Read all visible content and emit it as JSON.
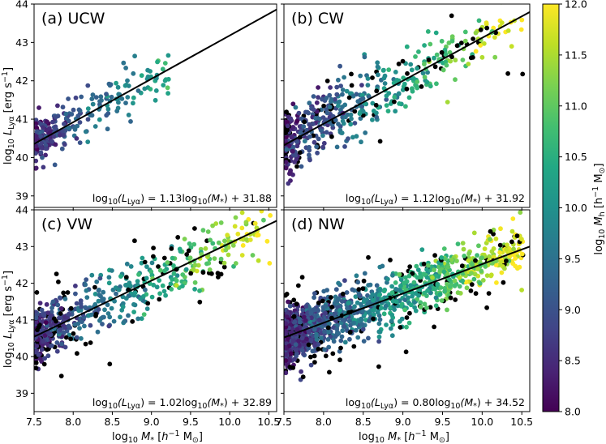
{
  "figure": {
    "xlabel_main": "log",
    "xlabel_sub": "10",
    "xlabel_var": "M",
    "xlabel_star": "*",
    "xlabel_unit_open": "[",
    "xlabel_unit_h": "h",
    "xlabel_unit_exp": "−1",
    "xlabel_unit_msun": "M",
    "xlabel_unit_odot": "⊙",
    "xlabel_unit_close": "]",
    "ylabel_main": "log",
    "ylabel_sub": "10",
    "ylabel_var": "L",
    "ylabel_varsub": "Lyα",
    "ylabel_unit": "[erg s",
    "ylabel_unit_exp": "−1",
    "ylabel_unit_close": "]",
    "colorbar_label_main": "log",
    "colorbar_label_sub": "10",
    "colorbar_label_var": "M",
    "colorbar_label_varsub": "h",
    "colorbar_label_unit": "[h",
    "colorbar_label_unit_exp": "−1",
    "colorbar_label_unit_msun": "M",
    "colorbar_label_unit_odot": "⊙",
    "colorbar_label_close": "]",
    "colorbar_ticks": [
      "8.0",
      "8.5",
      "9.0",
      "9.5",
      "10.0",
      "10.5",
      "11.0",
      "11.5",
      "12.0"
    ],
    "colorbar_range": [
      8.0,
      12.0
    ],
    "colorscale": "viridis",
    "no_halo_color": "#000000",
    "fit_line_color": "#000000"
  },
  "chart_data": [
    {
      "type": "scatter",
      "panel_label": "(a) UCW",
      "equation_text": "log10(LLyα) = 1.13log10(M*) + 31.88",
      "eq_lhs": "log",
      "eq_lhs_sub": "10",
      "eq_L": "(L",
      "eq_L_sub": "Lyα",
      "eq_mid": ") = 1.13log",
      "eq_mid_sub": "10",
      "eq_M": "(M",
      "eq_M_sub": "*",
      "eq_rhs": ") + 31.88",
      "slope": 1.13,
      "intercept": 31.88,
      "xlim": [
        7.5,
        10.6
      ],
      "ylim": [
        38.7,
        44.0
      ],
      "xticks": [
        "7.5",
        "8.0",
        "8.5",
        "9.0",
        "9.5",
        "10.0",
        "10.5"
      ],
      "yticks": [
        "39",
        "40",
        "41",
        "42",
        "43",
        "44"
      ],
      "seed": 11,
      "n_points": 260,
      "black_fraction": 0.0,
      "x_max_cloud": 9.2,
      "scatter_sigma": 0.3
    },
    {
      "type": "scatter",
      "panel_label": "(b) CW",
      "eq_lhs": "log",
      "eq_lhs_sub": "10",
      "eq_L": "(L",
      "eq_L_sub": "Lyα",
      "eq_mid": ") = 1.12log",
      "eq_mid_sub": "10",
      "eq_M": "(M",
      "eq_M_sub": "*",
      "eq_rhs": ") + 31.92",
      "slope": 1.12,
      "intercept": 31.92,
      "xlim": [
        7.5,
        10.6
      ],
      "ylim": [
        38.7,
        44.0
      ],
      "xticks": [
        "7.5",
        "8.0",
        "8.5",
        "9.0",
        "9.5",
        "10.0",
        "10.5"
      ],
      "yticks": [
        "39",
        "40",
        "41",
        "42",
        "43",
        "44"
      ],
      "seed": 23,
      "n_points": 520,
      "black_fraction": 0.12,
      "x_max_cloud": 10.5,
      "scatter_sigma": 0.4
    },
    {
      "type": "scatter",
      "panel_label": "(c) VW",
      "eq_lhs": "log",
      "eq_lhs_sub": "10",
      "eq_L": "(L",
      "eq_L_sub": "Lyα",
      "eq_mid": ") = 1.02log",
      "eq_mid_sub": "10",
      "eq_M": "(M",
      "eq_M_sub": "*",
      "eq_rhs": ") + 32.89",
      "slope": 1.02,
      "intercept": 32.89,
      "xlim": [
        7.5,
        10.6
      ],
      "ylim": [
        38.5,
        44.0
      ],
      "xticks": [
        "7.5",
        "8.0",
        "8.5",
        "9.0",
        "9.5",
        "10.0",
        "10.5"
      ],
      "yticks": [
        "39",
        "40",
        "41",
        "42",
        "43",
        "44"
      ],
      "seed": 37,
      "n_points": 620,
      "black_fraction": 0.15,
      "x_max_cloud": 10.5,
      "scatter_sigma": 0.38
    },
    {
      "type": "scatter",
      "panel_label": "(d) NW",
      "eq_lhs": "log",
      "eq_lhs_sub": "10",
      "eq_L": "(L",
      "eq_L_sub": "Lyα",
      "eq_mid": ") = 0.80log",
      "eq_mid_sub": "10",
      "eq_M": "(M",
      "eq_M_sub": "*",
      "eq_rhs": ") + 34.52",
      "slope": 0.8,
      "intercept": 34.52,
      "xlim": [
        7.5,
        10.6
      ],
      "ylim": [
        38.5,
        44.0
      ],
      "xticks": [
        "7.5",
        "8.0",
        "8.5",
        "9.0",
        "9.5",
        "10.0",
        "10.5"
      ],
      "yticks": [],
      "seed": 53,
      "n_points": 1400,
      "black_fraction": 0.12,
      "x_max_cloud": 10.5,
      "scatter_sigma": 0.38
    }
  ]
}
